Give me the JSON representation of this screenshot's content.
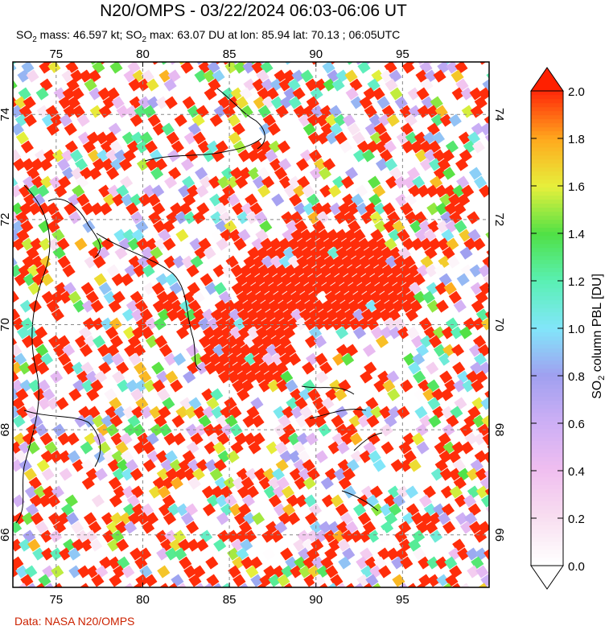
{
  "header": {
    "title": "N20/OMPS - 03/22/2024 06:03-06:06 UT",
    "subtitle_parts": [
      "SO",
      "2",
      " mass: 46.597 kt; SO",
      "2",
      " max: 63.07 DU at lon: 85.94 lat: 70.13 ; 06:05UTC"
    ]
  },
  "map": {
    "lon_range": [
      72.5,
      100
    ],
    "lat_range": [
      65,
      75
    ],
    "lon_ticks": [
      "75",
      "80",
      "85",
      "90",
      "95"
    ],
    "lat_ticks": [
      "66",
      "68",
      "70",
      "72",
      "74"
    ]
  },
  "colorbar": {
    "label_parts": [
      "SO",
      "2",
      " column PBL [DU]"
    ],
    "ticks": [
      "0.0",
      "0.2",
      "0.4",
      "0.6",
      "0.8",
      "1.0",
      "1.2",
      "1.4",
      "1.6",
      "1.8",
      "2.0"
    ],
    "range": [
      0,
      2
    ]
  },
  "footer": {
    "credit": "Data: NASA N20/OMPS"
  }
}
